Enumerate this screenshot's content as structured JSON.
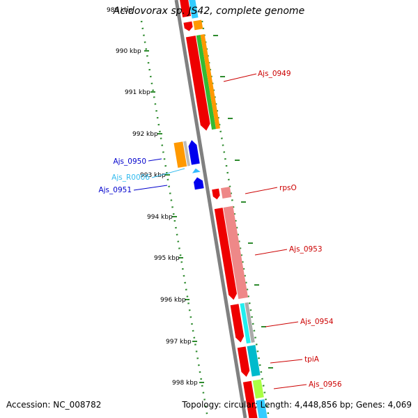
{
  "header": {
    "title": "Acidovorax sp. JS42, complete genome",
    "cut_label": "989 kbp"
  },
  "footer": {
    "accession": "Accession: NC_008782",
    "summary": "Topology: circular; Length: 4,448,856 bp; Genes: 4,069"
  },
  "colors": {
    "backbone": "#8a8a8a",
    "tick": "#2e8b2e",
    "forward_label": "#cc0000",
    "reverse_label": "#0000cc",
    "rna_label": "#33bbee"
  },
  "ticks": [
    {
      "label": "990 kbp"
    },
    {
      "label": "991 kbp"
    },
    {
      "label": "992 kbp"
    },
    {
      "label": "993 kbp"
    },
    {
      "label": "994 kbp"
    },
    {
      "label": "995 kbp"
    },
    {
      "label": "996 kbp"
    },
    {
      "label": "997 kbp"
    },
    {
      "label": "998 kbp"
    }
  ],
  "gene_labels": [
    {
      "name": "Ajs_0949",
      "strand": "forward"
    },
    {
      "name": "rpsO",
      "strand": "forward"
    },
    {
      "name": "Ajs_0953",
      "strand": "forward"
    },
    {
      "name": "Ajs_0954",
      "strand": "forward"
    },
    {
      "name": "tpiA",
      "strand": "forward"
    },
    {
      "name": "Ajs_0956",
      "strand": "forward"
    },
    {
      "name": "Ajs_0950",
      "strand": "reverse"
    },
    {
      "name": "Ajs_R0006",
      "strand": "rna"
    },
    {
      "name": "Ajs_0951",
      "strand": "reverse"
    }
  ]
}
